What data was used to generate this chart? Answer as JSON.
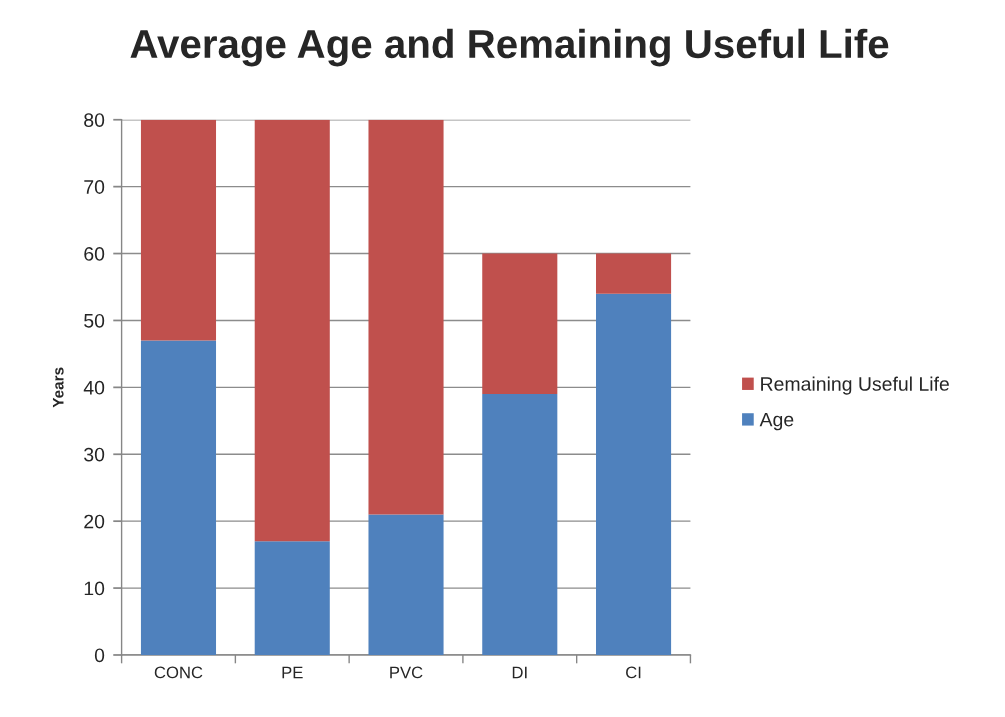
{
  "chart_data": {
    "type": "bar",
    "title": "Average Age and Remaining Useful Life",
    "ylabel": "Years",
    "categories": [
      "CONC",
      "PE",
      "PVC",
      "DI",
      "CI"
    ],
    "series": [
      {
        "name": "Age",
        "color": "#4f81bd",
        "values": [
          47,
          17,
          21,
          39,
          54
        ]
      },
      {
        "name": "Remaining Useful Life",
        "color": "#c0504d",
        "values": [
          33,
          63,
          59,
          21,
          6
        ]
      }
    ],
    "stacked": true,
    "ylim": [
      0,
      80
    ],
    "yticks": [
      0,
      10,
      20,
      30,
      40,
      50,
      60,
      70,
      80
    ],
    "grid": "y",
    "legend": "right"
  }
}
